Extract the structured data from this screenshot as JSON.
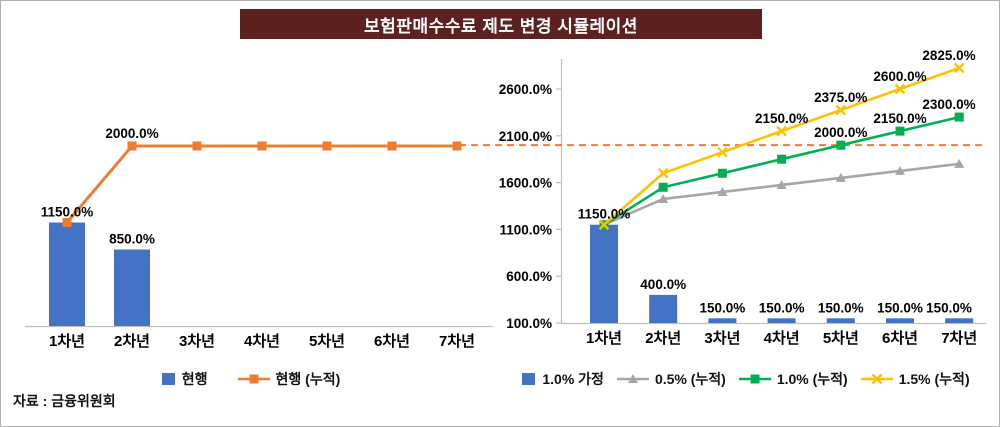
{
  "title": "보험판매수수료 제도 변경 시뮬레이션",
  "source": "자료 : 금융위원회",
  "colors": {
    "title_bg": "#5d2120",
    "title_text": "#ffffff",
    "bar_blue": "#4472c4",
    "orange": "#ed7d31",
    "gray": "#a6a6a6",
    "green": "#00b050",
    "yellow": "#ffc000",
    "axis": "#bfbfbf",
    "text": "#000000"
  },
  "chart_data": [
    {
      "type": "bar",
      "position": "left",
      "categories": [
        "1차년",
        "2차년",
        "3차년",
        "4차년",
        "5차년",
        "6차년",
        "7차년"
      ],
      "ylim": [
        0,
        2400
      ],
      "y_axis_visible": false,
      "grid": false,
      "legend_position": "bottom",
      "series": [
        {
          "name": "현행",
          "kind": "bar",
          "color": "bar_blue",
          "values": [
            1150,
            850,
            0,
            0,
            0,
            0,
            0
          ],
          "labels": [
            "1150.0%",
            "850.0%",
            "",
            "",
            "",
            "",
            ""
          ]
        },
        {
          "name": "현행 (누적)",
          "kind": "line",
          "marker": "square",
          "color": "orange",
          "values": [
            1150,
            2000,
            2000,
            2000,
            2000,
            2000,
            2000
          ],
          "labels": [
            "",
            "2000.0%",
            "",
            "",
            "",
            "",
            ""
          ]
        }
      ]
    },
    {
      "type": "bar",
      "position": "right",
      "categories": [
        "1차년",
        "2차년",
        "3차년",
        "4차년",
        "5차년",
        "6차년",
        "7차년"
      ],
      "ylim": [
        100,
        2900
      ],
      "y_ticks": [
        100,
        600,
        1100,
        1600,
        2100,
        2600
      ],
      "y_tick_labels": [
        "100.0%",
        "600.0%",
        "1100.0%",
        "1600.0%",
        "2100.0%",
        "2600.0%"
      ],
      "grid": false,
      "legend_position": "bottom",
      "reference_line": {
        "value": 2000,
        "style": "dashed",
        "color": "orange"
      },
      "series": [
        {
          "name": "1.0% 가정",
          "kind": "bar",
          "color": "bar_blue",
          "values": [
            1150,
            400,
            150,
            150,
            150,
            150,
            150
          ],
          "labels": [
            "1150.0%",
            "400.0%",
            "150.0%",
            "150.0%",
            "150.0%",
            "150.0%",
            "150.0%"
          ]
        },
        {
          "name": "0.5% (누적)",
          "kind": "line",
          "marker": "triangle",
          "color": "gray",
          "values": [
            1150,
            1425,
            1500,
            1575,
            1650,
            1725,
            1800
          ],
          "labels": [
            "",
            "",
            "",
            "",
            "",
            "",
            ""
          ]
        },
        {
          "name": "1.0% (누적)",
          "kind": "line",
          "marker": "square",
          "color": "green",
          "values": [
            1150,
            1550,
            1700,
            1850,
            2000,
            2150,
            2300
          ],
          "labels": [
            "",
            "",
            "",
            "",
            "2000.0%",
            "2150.0%",
            "2300.0%"
          ]
        },
        {
          "name": "1.5% (누적)",
          "kind": "line",
          "marker": "x",
          "color": "yellow",
          "values": [
            1150,
            1700,
            1925,
            2150,
            2375,
            2600,
            2825
          ],
          "labels": [
            "",
            "",
            "",
            "2150.0%",
            "2375.0%",
            "2600.0%",
            "2825.0%"
          ]
        }
      ]
    }
  ]
}
